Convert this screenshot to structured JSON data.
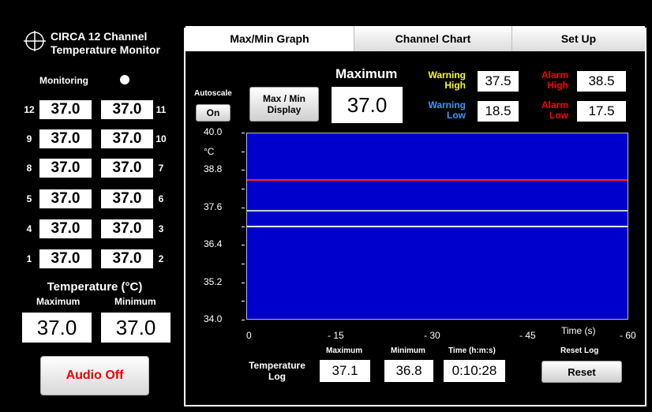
{
  "app": {
    "title_line1": "CIRCA 12 Channel",
    "title_line2": "Temperature Monitor"
  },
  "monitoring": {
    "label": "Monitoring"
  },
  "channels": [
    {
      "num": "12",
      "value": "37.0"
    },
    {
      "num": "11",
      "value": "37.0"
    },
    {
      "num": "9",
      "value": "37.0"
    },
    {
      "num": "10",
      "value": "37.0"
    },
    {
      "num": "8",
      "value": "37.0"
    },
    {
      "num": "7",
      "value": "37.0"
    },
    {
      "num": "5",
      "value": "37.0"
    },
    {
      "num": "6",
      "value": "37.0"
    },
    {
      "num": "4",
      "value": "37.0"
    },
    {
      "num": "3",
      "value": "37.0"
    },
    {
      "num": "1",
      "value": "37.0"
    },
    {
      "num": "2",
      "value": "37.0"
    }
  ],
  "summary": {
    "title": "Temperature (°C)",
    "max_label": "Maximum",
    "min_label": "Minimum",
    "max_value": "37.0",
    "min_value": "37.0"
  },
  "audio_button": "Audio Off",
  "tabs": [
    "Max/Min Graph",
    "Channel Chart",
    "Set Up"
  ],
  "controls": {
    "autoscale_label": "Autoscale",
    "autoscale_value": "On",
    "maxmin_line1": "Max / Min",
    "maxmin_line2": "Display",
    "maximum_label": "Maximum",
    "maximum_value": "37.0"
  },
  "thresholds": {
    "warning_high_l1": "Warning",
    "warning_high_l2": "High",
    "warning_high_value": "37.5",
    "warning_low_l1": "Warning",
    "warning_low_l2": "Low",
    "warning_low_value": "18.5",
    "alarm_high_l1": "Alarm",
    "alarm_high_l2": "High",
    "alarm_high_value": "38.5",
    "alarm_low_l1": "Alarm",
    "alarm_low_l2": "Low",
    "alarm_low_value": "17.5",
    "warning_color": "#ffff00",
    "warning_low_color": "#3399ff",
    "alarm_color": "#ff0000"
  },
  "graph": {
    "unit": "°C",
    "y_ticks": [
      "40.0",
      "38.8",
      "37.6",
      "36.4",
      "35.2",
      "34.0"
    ],
    "x_ticks": [
      "0",
      "- 15",
      "- 30",
      "- 45",
      "- 60"
    ],
    "x_label": "Time (s)",
    "ylim": [
      34.0,
      40.0
    ],
    "lines": {
      "alarm_high": 38.5,
      "warning_high": 37.5,
      "current": 37.0
    },
    "plot_color": "#0000cc"
  },
  "log": {
    "title_l1": "Temperature",
    "title_l2": "Log",
    "max_label": "Maximum",
    "min_label": "Minimum",
    "time_label": "Time (h:m:s)",
    "max_value": "37.1",
    "min_value": "36.8",
    "time_value": "0:10:28",
    "reset_label_title": "Reset Log",
    "reset_button": "Reset"
  }
}
